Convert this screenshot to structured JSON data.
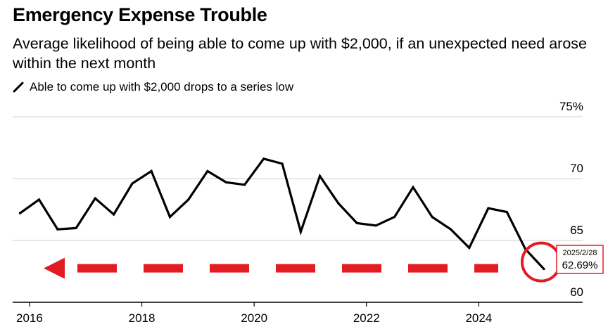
{
  "chart_data": {
    "type": "line",
    "title": "Emergency Expense Trouble",
    "subtitle": "Average likelihood of being able to come up with $2,000, if an unexpected need arose within the next month",
    "legend": [
      "Able to come up with $2,000 drops to a series low"
    ],
    "ylim": [
      60,
      75
    ],
    "yticks": [
      60,
      65,
      70,
      75
    ],
    "ytick_labels": [
      "60",
      "65",
      "70",
      "75%"
    ],
    "xlim": [
      2015.7,
      2025.85
    ],
    "xticks": [
      2016,
      2018,
      2020,
      2022,
      2024
    ],
    "xtick_labels": [
      "2016",
      "2018",
      "2020",
      "2022",
      "2024"
    ],
    "gridlines": true,
    "series": [
      {
        "name": "Able to come up with $2,000 drops to a series low",
        "color": "#000000",
        "x": [
          2015.83,
          2016.17,
          2016.5,
          2016.83,
          2017.17,
          2017.5,
          2017.83,
          2018.17,
          2018.5,
          2018.83,
          2019.17,
          2019.5,
          2019.83,
          2020.17,
          2020.5,
          2020.83,
          2021.17,
          2021.5,
          2021.83,
          2022.17,
          2022.5,
          2022.83,
          2023.17,
          2023.5,
          2023.83,
          2024.17,
          2024.5,
          2024.83,
          2025.16
        ],
        "values": [
          67.2,
          68.3,
          65.9,
          66.0,
          68.4,
          67.1,
          69.6,
          70.6,
          66.9,
          68.3,
          70.6,
          69.7,
          69.5,
          71.6,
          71.2,
          65.7,
          70.2,
          68.0,
          66.4,
          66.2,
          66.9,
          69.3,
          66.9,
          65.9,
          64.4,
          67.6,
          67.3,
          64.3,
          62.69
        ]
      }
    ],
    "annotation": {
      "date": "2025/2/28",
      "value": "62.69%",
      "x": 2025.16,
      "y": 62.69,
      "highlight_color": "#e31b23",
      "arrow_direction": "left"
    }
  }
}
